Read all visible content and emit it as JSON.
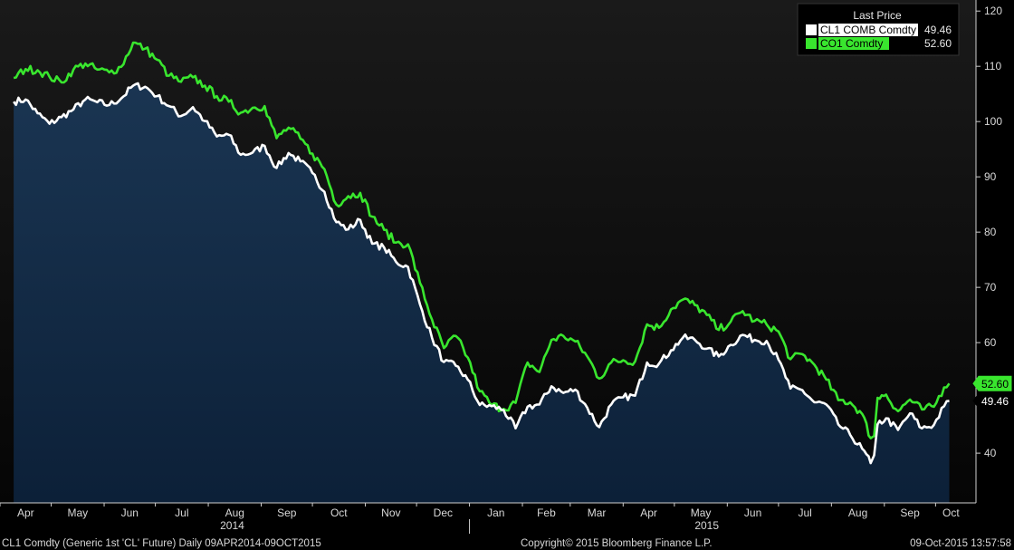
{
  "chart_data": {
    "type": "line",
    "ylim": [
      31,
      122
    ],
    "y_ticks": [
      40,
      50,
      60,
      70,
      80,
      90,
      100,
      110,
      120
    ],
    "grid": false,
    "legend": {
      "title": "Last Price",
      "placement": "top-right",
      "entries": [
        {
          "name": "CL1 COMB Comdty",
          "value": "49.46",
          "color": "#ffffff"
        },
        {
          "name": "CO1 Comdty",
          "value": "52.60",
          "color": "#39e62e"
        }
      ]
    },
    "month_ticks": [
      "Apr",
      "May",
      "Jun",
      "Jul",
      "Aug",
      "Sep",
      "Oct",
      "Nov",
      "Dec",
      "Jan",
      "Feb",
      "Mar",
      "Apr",
      "May",
      "Jun",
      "Jul",
      "Aug",
      "Sep",
      "Oct"
    ],
    "year_labels": [
      "2014",
      "2015"
    ],
    "series": [
      {
        "name": "CL1 COMB Comdty",
        "color": "#ffffff",
        "last_label": "49.46",
        "points": [
          [
            "2014-04-09",
            103.6
          ],
          [
            "2014-04-16",
            104.0
          ],
          [
            "2014-04-23",
            101.5
          ],
          [
            "2014-04-30",
            99.6
          ],
          [
            "2014-05-07",
            100.8
          ],
          [
            "2014-05-14",
            102.2
          ],
          [
            "2014-05-21",
            104.0
          ],
          [
            "2014-05-28",
            103.5
          ],
          [
            "2014-06-04",
            103.0
          ],
          [
            "2014-06-11",
            104.2
          ],
          [
            "2014-06-18",
            106.5
          ],
          [
            "2014-06-25",
            106.3
          ],
          [
            "2014-07-02",
            104.6
          ],
          [
            "2014-07-09",
            102.8
          ],
          [
            "2014-07-16",
            101.0
          ],
          [
            "2014-07-23",
            102.6
          ],
          [
            "2014-07-30",
            100.1
          ],
          [
            "2014-08-06",
            97.3
          ],
          [
            "2014-08-13",
            97.6
          ],
          [
            "2014-08-20",
            94.0
          ],
          [
            "2014-08-27",
            94.4
          ],
          [
            "2014-09-03",
            95.6
          ],
          [
            "2014-09-10",
            91.6
          ],
          [
            "2014-09-17",
            94.3
          ],
          [
            "2014-09-24",
            92.8
          ],
          [
            "2014-10-01",
            90.7
          ],
          [
            "2014-10-08",
            87.3
          ],
          [
            "2014-10-15",
            81.8
          ],
          [
            "2014-10-22",
            80.5
          ],
          [
            "2014-10-29",
            82.2
          ],
          [
            "2014-11-05",
            77.9
          ],
          [
            "2014-11-12",
            77.2
          ],
          [
            "2014-11-19",
            74.6
          ],
          [
            "2014-11-26",
            73.7
          ],
          [
            "2014-12-03",
            66.9
          ],
          [
            "2014-12-10",
            60.9
          ],
          [
            "2014-12-17",
            56.5
          ],
          [
            "2014-12-24",
            55.8
          ],
          [
            "2014-12-31",
            53.3
          ],
          [
            "2015-01-07",
            48.7
          ],
          [
            "2015-01-14",
            48.5
          ],
          [
            "2015-01-21",
            47.8
          ],
          [
            "2015-01-28",
            44.5
          ],
          [
            "2015-02-04",
            48.4
          ],
          [
            "2015-02-11",
            48.8
          ],
          [
            "2015-02-18",
            52.1
          ],
          [
            "2015-02-25",
            50.9
          ],
          [
            "2015-03-04",
            51.5
          ],
          [
            "2015-03-11",
            48.2
          ],
          [
            "2015-03-18",
            44.7
          ],
          [
            "2015-03-25",
            48.8
          ],
          [
            "2015-04-01",
            50.1
          ],
          [
            "2015-04-08",
            50.4
          ],
          [
            "2015-04-15",
            56.4
          ],
          [
            "2015-04-22",
            56.2
          ],
          [
            "2015-04-29",
            58.6
          ],
          [
            "2015-05-06",
            60.9
          ],
          [
            "2015-05-13",
            60.5
          ],
          [
            "2015-05-20",
            58.9
          ],
          [
            "2015-05-27",
            57.5
          ],
          [
            "2015-06-03",
            59.6
          ],
          [
            "2015-06-10",
            61.4
          ],
          [
            "2015-06-17",
            60.5
          ],
          [
            "2015-06-24",
            60.3
          ],
          [
            "2015-07-01",
            56.9
          ],
          [
            "2015-07-08",
            51.7
          ],
          [
            "2015-07-15",
            51.4
          ],
          [
            "2015-07-22",
            49.2
          ],
          [
            "2015-07-29",
            48.8
          ],
          [
            "2015-08-05",
            45.2
          ],
          [
            "2015-08-12",
            43.3
          ],
          [
            "2015-08-19",
            40.8
          ],
          [
            "2015-08-24",
            38.2
          ],
          [
            "2015-08-26",
            39.6
          ],
          [
            "2015-08-28",
            45.2
          ],
          [
            "2015-09-02",
            46.3
          ],
          [
            "2015-09-09",
            44.2
          ],
          [
            "2015-09-16",
            47.2
          ],
          [
            "2015-09-23",
            44.5
          ],
          [
            "2015-09-30",
            45.1
          ],
          [
            "2015-10-06",
            48.5
          ],
          [
            "2015-10-09",
            49.46
          ]
        ]
      },
      {
        "name": "CO1 Comdty",
        "color": "#39e62e",
        "last_label": "52.60",
        "points": [
          [
            "2014-04-09",
            107.9
          ],
          [
            "2014-04-16",
            109.5
          ],
          [
            "2014-04-23",
            109.3
          ],
          [
            "2014-04-30",
            108.1
          ],
          [
            "2014-05-07",
            107.1
          ],
          [
            "2014-05-14",
            109.4
          ],
          [
            "2014-05-21",
            110.5
          ],
          [
            "2014-05-28",
            109.4
          ],
          [
            "2014-06-04",
            108.9
          ],
          [
            "2014-06-11",
            109.9
          ],
          [
            "2014-06-18",
            114.3
          ],
          [
            "2014-06-25",
            113.2
          ],
          [
            "2014-07-02",
            111.2
          ],
          [
            "2014-07-09",
            108.3
          ],
          [
            "2014-07-16",
            107.2
          ],
          [
            "2014-07-23",
            108.0
          ],
          [
            "2014-07-30",
            106.5
          ],
          [
            "2014-08-06",
            104.6
          ],
          [
            "2014-08-13",
            103.6
          ],
          [
            "2014-08-20",
            101.6
          ],
          [
            "2014-08-27",
            102.5
          ],
          [
            "2014-09-03",
            102.8
          ],
          [
            "2014-09-10",
            97.0
          ],
          [
            "2014-09-17",
            98.9
          ],
          [
            "2014-09-24",
            96.9
          ],
          [
            "2014-10-01",
            94.2
          ],
          [
            "2014-10-08",
            91.4
          ],
          [
            "2014-10-15",
            85.0
          ],
          [
            "2014-10-22",
            86.5
          ],
          [
            "2014-10-29",
            87.1
          ],
          [
            "2014-11-05",
            82.8
          ],
          [
            "2014-11-12",
            80.4
          ],
          [
            "2014-11-19",
            78.1
          ],
          [
            "2014-11-26",
            77.8
          ],
          [
            "2014-12-03",
            70.8
          ],
          [
            "2014-12-10",
            64.2
          ],
          [
            "2014-12-17",
            59.0
          ],
          [
            "2014-12-24",
            61.2
          ],
          [
            "2014-12-31",
            57.3
          ],
          [
            "2015-01-07",
            51.2
          ],
          [
            "2015-01-14",
            48.7
          ],
          [
            "2015-01-21",
            48.0
          ],
          [
            "2015-01-28",
            49.1
          ],
          [
            "2015-02-04",
            56.4
          ],
          [
            "2015-02-11",
            54.7
          ],
          [
            "2015-02-18",
            60.5
          ],
          [
            "2015-02-25",
            61.2
          ],
          [
            "2015-03-04",
            60.2
          ],
          [
            "2015-03-11",
            57.5
          ],
          [
            "2015-03-18",
            53.5
          ],
          [
            "2015-03-25",
            56.4
          ],
          [
            "2015-04-01",
            56.8
          ],
          [
            "2015-04-08",
            56.6
          ],
          [
            "2015-04-15",
            63.3
          ],
          [
            "2015-04-22",
            62.7
          ],
          [
            "2015-04-29",
            66.0
          ],
          [
            "2015-05-06",
            67.8
          ],
          [
            "2015-05-13",
            66.8
          ],
          [
            "2015-05-20",
            65.0
          ],
          [
            "2015-05-27",
            62.3
          ],
          [
            "2015-06-03",
            63.8
          ],
          [
            "2015-06-10",
            65.7
          ],
          [
            "2015-06-17",
            63.9
          ],
          [
            "2015-06-24",
            63.3
          ],
          [
            "2015-07-01",
            62.0
          ],
          [
            "2015-07-08",
            57.0
          ],
          [
            "2015-07-15",
            57.9
          ],
          [
            "2015-07-22",
            56.0
          ],
          [
            "2015-07-29",
            53.3
          ],
          [
            "2015-08-05",
            49.6
          ],
          [
            "2015-08-12",
            49.2
          ],
          [
            "2015-08-19",
            47.1
          ],
          [
            "2015-08-24",
            42.7
          ],
          [
            "2015-08-26",
            43.1
          ],
          [
            "2015-08-28",
            50.0
          ],
          [
            "2015-09-02",
            50.6
          ],
          [
            "2015-09-09",
            47.6
          ],
          [
            "2015-09-16",
            49.7
          ],
          [
            "2015-09-23",
            47.9
          ],
          [
            "2015-09-30",
            48.4
          ],
          [
            "2015-10-06",
            51.9
          ],
          [
            "2015-10-09",
            52.6
          ]
        ]
      }
    ]
  },
  "footer": {
    "left": "CL1 Comdty (Generic 1st 'CL' Future)  Daily 09APR2014-09OCT2015",
    "center": "Copyright© 2015 Bloomberg Finance L.P.",
    "right": "09-Oct-2015 13:57:58"
  }
}
